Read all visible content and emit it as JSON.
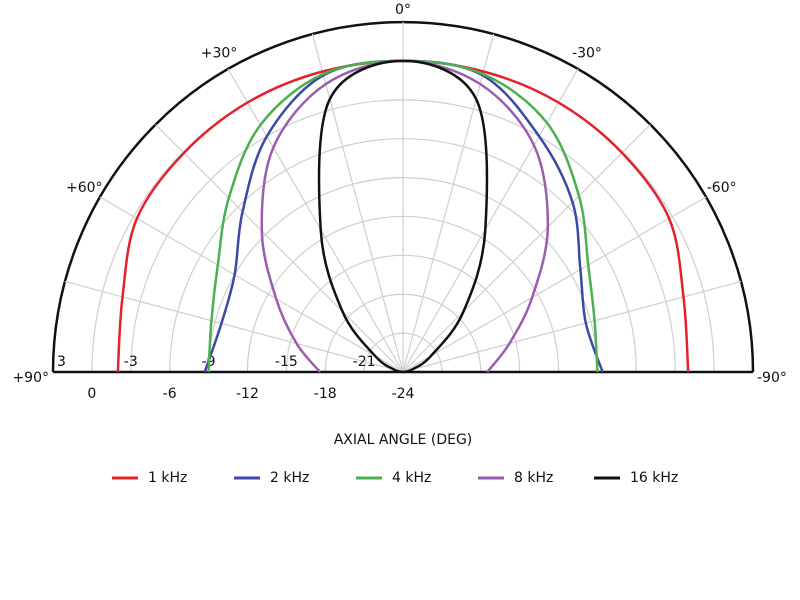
{
  "chart_data": {
    "type": "polar",
    "theta_label": "AXIAL ANGLE (DEG)",
    "theta": [
      90,
      75,
      60,
      45,
      30,
      15,
      0,
      -15,
      -30,
      -45,
      -60,
      -75,
      -90
    ],
    "thetalim": [
      90,
      -90
    ],
    "thetaticks": [
      {
        "value": 0,
        "label": "0°"
      },
      {
        "value": 30,
        "label": "+30°"
      },
      {
        "value": 60,
        "label": "+60°"
      },
      {
        "value": 90,
        "label": "+90°"
      },
      {
        "value": -30,
        "label": "-30°"
      },
      {
        "value": -60,
        "label": "-60°"
      },
      {
        "value": -90,
        "label": "-90°"
      }
    ],
    "theta_grid": [
      90,
      75,
      60,
      45,
      30,
      15,
      0,
      -15,
      -30,
      -45,
      -60,
      -75,
      -90
    ],
    "rlim": [
      -24,
      3
    ],
    "rticks": [
      -24,
      -21,
      -18,
      -15,
      -12,
      -9,
      -6,
      -3,
      0,
      3
    ],
    "grid": true,
    "series": [
      {
        "name": "1 kHz",
        "color": "#e3222b",
        "values": [
          -2,
          -1.6,
          -0.3,
          -0.1,
          0,
          0,
          0,
          0,
          0,
          -0.1,
          -0.3,
          -1.6,
          -2
        ]
      },
      {
        "name": "2 kHz",
        "color": "#3c4aa6",
        "values": [
          -8.7,
          -9.5,
          -9,
          -6.5,
          -3,
          -0.3,
          0,
          -0.3,
          -3,
          -5.5,
          -8.2,
          -9.4,
          -8.6
        ]
      },
      {
        "name": "4 kHz",
        "color": "#4caf50",
        "values": [
          -9,
          -8.7,
          -7.5,
          -5,
          -2,
          -0.2,
          0,
          -0.2,
          -1.8,
          -4.8,
          -7.5,
          -8.7,
          -9
        ]
      },
      {
        "name": "8 kHz",
        "color": "#9a5eae",
        "values": [
          -17.6,
          -15.5,
          -12.7,
          -8.6,
          -4,
          -1,
          0,
          -1,
          -3.8,
          -8.2,
          -12.5,
          -15.5,
          -17.5
        ]
      },
      {
        "name": "16 kHz",
        "color": "#111111",
        "values": [
          -24,
          -23.3,
          -21.5,
          -17.4,
          -11.3,
          -2.2,
          0,
          -2.2,
          -11.3,
          -17.4,
          -21.5,
          -23.3,
          -24
        ]
      }
    ]
  }
}
